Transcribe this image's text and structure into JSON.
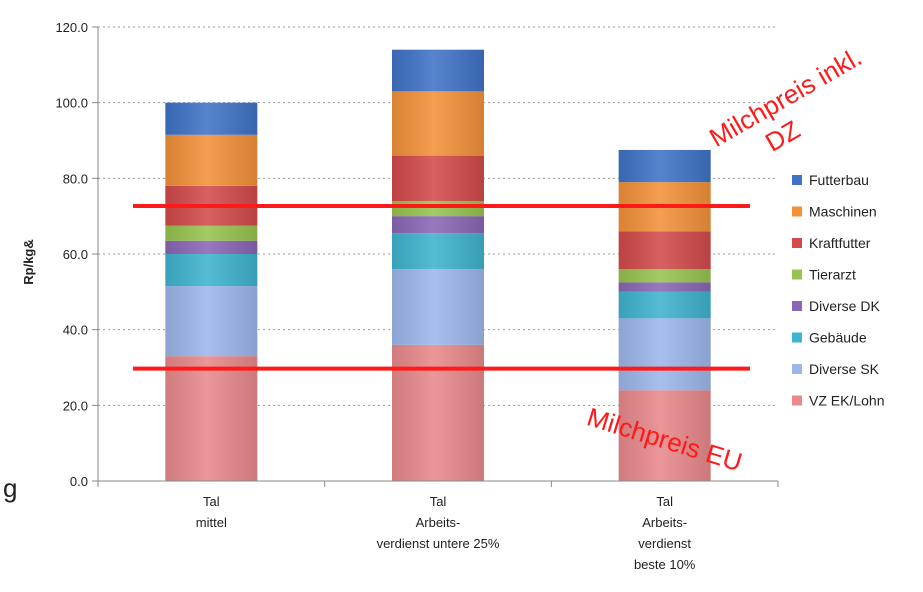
{
  "chart_data": {
    "type": "bar",
    "stacked": true,
    "title": "",
    "xlabel": "",
    "ylabel": "Rp/kg&",
    "ylim": [
      0,
      120
    ],
    "yticks": [
      "0.0",
      "20.0",
      "40.0",
      "60.0",
      "80.0",
      "100.0",
      "120.0"
    ],
    "grid": true,
    "legend_position": "right",
    "categories": [
      [
        "Tal",
        "mittel"
      ],
      [
        "Tal",
        "Arbeits-",
        "verdienst untere 25%"
      ],
      [
        "Tal",
        "Arbeits-",
        "verdienst",
        "beste 10%"
      ]
    ],
    "series": [
      {
        "name": "VZ EK/Lohn",
        "color": "#e8898b",
        "values": [
          33,
          36,
          24
        ]
      },
      {
        "name": "Diverse SK",
        "color": "#9db6ea",
        "values": [
          18.5,
          20,
          19
        ]
      },
      {
        "name": "Gebäude",
        "color": "#3fb3cf",
        "values": [
          8.5,
          9.5,
          7
        ]
      },
      {
        "name": "Diverse DK",
        "color": "#8a66b5",
        "values": [
          3.5,
          4.5,
          2.5
        ]
      },
      {
        "name": "Tierarzt",
        "color": "#97c34f",
        "values": [
          4,
          4,
          3.5
        ]
      },
      {
        "name": "Kraftfutter",
        "color": "#d24a4a",
        "values": [
          10.5,
          12,
          10
        ]
      },
      {
        "name": "Maschinen",
        "color": "#f3913a",
        "values": [
          13.5,
          17,
          13
        ]
      },
      {
        "name": "Futterbau",
        "color": "#3f73c6",
        "values": [
          8.5,
          11,
          8.5
        ]
      }
    ],
    "reference_lines": [
      {
        "label": [
          "Milchpreis inkl.",
          "DZ"
        ],
        "value": 72.7,
        "color": "#ff1a1a"
      },
      {
        "label": [
          "Milchpreis EU"
        ],
        "value": 29.7,
        "color": "#ff1a1a"
      }
    ],
    "stray_text": "g"
  }
}
